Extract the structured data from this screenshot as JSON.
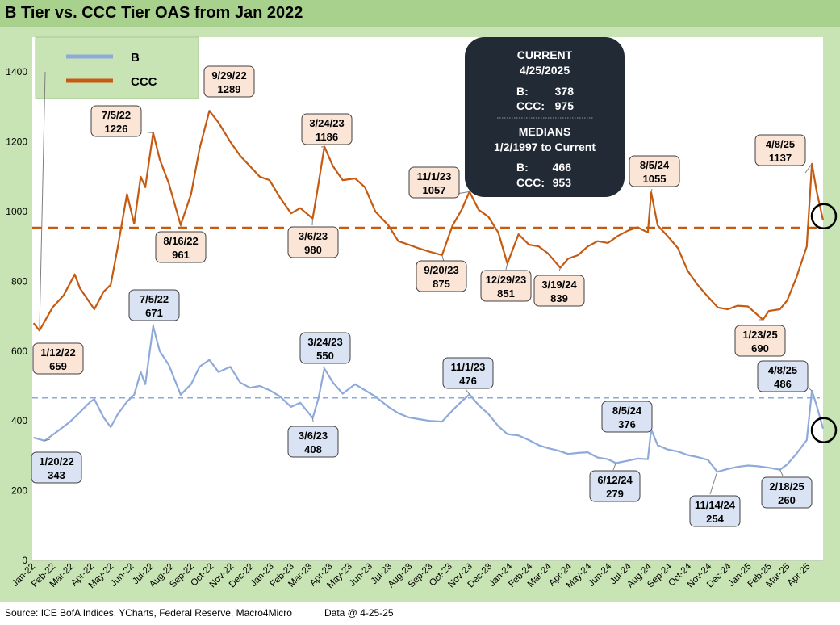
{
  "title": "B Tier vs. CCC Tier OAS from Jan 2022",
  "footer": {
    "source": "Source: ICE BofA Indices, YCharts, Federal Reserve, Macro4Micro",
    "data_date": "Data @ 4-25-25"
  },
  "info_box": {
    "current_heading": "CURRENT",
    "current_date": "4/25/2025",
    "current_b_label": "B:",
    "current_b_value": "378",
    "current_ccc_label": "CCC:",
    "current_ccc_value": "975",
    "medians_heading": "MEDIANS",
    "medians_range": "1/2/1997 to Current",
    "median_b_label": "B:",
    "median_b_value": "466",
    "median_ccc_label": "CCC:",
    "median_ccc_value": "953"
  },
  "colors": {
    "b_series": "#8eaadb",
    "ccc_series": "#c55a11",
    "b_callout_fill": "#dae3f3",
    "ccc_callout_fill": "#fbe5d6",
    "plot_bg": "#ffffff",
    "frame_bg": "#c9e4b4",
    "info_box_bg": "#222a35"
  },
  "chart_data": {
    "type": "line",
    "title": "B Tier vs. CCC Tier OAS from Jan 2022",
    "ylim": [
      0,
      1500
    ],
    "yticks": [
      0,
      200,
      400,
      600,
      800,
      1000,
      1200,
      1400
    ],
    "xlim": [
      "2022-01-01",
      "2025-04-25"
    ],
    "x_tick_labels": [
      "Jan-22",
      "Feb-22",
      "Mar-22",
      "Apr-22",
      "May-22",
      "Jun-22",
      "Jul-22",
      "Aug-22",
      "Sep-22",
      "Oct-22",
      "Nov-22",
      "Dec-22",
      "Jan-23",
      "Feb-23",
      "Mar-23",
      "Apr-23",
      "May-23",
      "Jun-23",
      "Jul-23",
      "Aug-23",
      "Sep-23",
      "Oct-23",
      "Nov-23",
      "Dec-23",
      "Jan-24",
      "Feb-24",
      "Mar-24",
      "Apr-24",
      "May-24",
      "Jun-24",
      "Jul-24",
      "Aug-24",
      "Sep-24",
      "Oct-24",
      "Nov-24",
      "Dec-24",
      "Jan-25",
      "Feb-25",
      "Mar-25",
      "Apr-25"
    ],
    "legend": {
      "placement": "top-left",
      "entries": [
        "B",
        "CCC"
      ]
    },
    "reference_lines": [
      {
        "series": "CCC",
        "value": 953,
        "style": "dashed"
      },
      {
        "series": "B",
        "value": 466,
        "style": "dashed"
      }
    ],
    "series": [
      {
        "name": "B",
        "points": [
          [
            "2022-01-03",
            352
          ],
          [
            "2022-01-20",
            343
          ],
          [
            "2022-02-10",
            372
          ],
          [
            "2022-02-28",
            398
          ],
          [
            "2022-03-15",
            425
          ],
          [
            "2022-03-31",
            455
          ],
          [
            "2022-04-06",
            462
          ],
          [
            "2022-04-20",
            410
          ],
          [
            "2022-05-01",
            382
          ],
          [
            "2022-05-12",
            420
          ],
          [
            "2022-05-26",
            455
          ],
          [
            "2022-06-06",
            475
          ],
          [
            "2022-06-16",
            540
          ],
          [
            "2022-06-23",
            505
          ],
          [
            "2022-07-05",
            671
          ],
          [
            "2022-07-15",
            600
          ],
          [
            "2022-07-29",
            560
          ],
          [
            "2022-08-16",
            475
          ],
          [
            "2022-09-01",
            505
          ],
          [
            "2022-09-14",
            555
          ],
          [
            "2022-09-29",
            575
          ],
          [
            "2022-10-13",
            540
          ],
          [
            "2022-10-31",
            555
          ],
          [
            "2022-11-15",
            510
          ],
          [
            "2022-11-30",
            495
          ],
          [
            "2022-12-15",
            500
          ],
          [
            "2022-12-30",
            488
          ],
          [
            "2023-01-15",
            470
          ],
          [
            "2023-02-01",
            440
          ],
          [
            "2023-02-15",
            452
          ],
          [
            "2023-03-06",
            408
          ],
          [
            "2023-03-15",
            465
          ],
          [
            "2023-03-24",
            550
          ],
          [
            "2023-04-06",
            510
          ],
          [
            "2023-04-21",
            478
          ],
          [
            "2023-05-10",
            505
          ],
          [
            "2023-05-25",
            488
          ],
          [
            "2023-06-10",
            470
          ],
          [
            "2023-06-30",
            440
          ],
          [
            "2023-07-15",
            422
          ],
          [
            "2023-07-31",
            410
          ],
          [
            "2023-08-15",
            405
          ],
          [
            "2023-09-01",
            400
          ],
          [
            "2023-09-20",
            398
          ],
          [
            "2023-10-06",
            430
          ],
          [
            "2023-10-20",
            456
          ],
          [
            "2023-11-01",
            476
          ],
          [
            "2023-11-15",
            445
          ],
          [
            "2023-11-30",
            420
          ],
          [
            "2023-12-15",
            385
          ],
          [
            "2023-12-29",
            362
          ],
          [
            "2024-01-15",
            358
          ],
          [
            "2024-01-31",
            345
          ],
          [
            "2024-02-15",
            330
          ],
          [
            "2024-02-29",
            322
          ],
          [
            "2024-03-15",
            315
          ],
          [
            "2024-03-31",
            305
          ],
          [
            "2024-04-15",
            308
          ],
          [
            "2024-04-30",
            310
          ],
          [
            "2024-05-15",
            295
          ],
          [
            "2024-05-31",
            290
          ],
          [
            "2024-06-12",
            279
          ],
          [
            "2024-06-28",
            285
          ],
          [
            "2024-07-15",
            292
          ],
          [
            "2024-07-31",
            290
          ],
          [
            "2024-08-05",
            376
          ],
          [
            "2024-08-15",
            330
          ],
          [
            "2024-08-30",
            318
          ],
          [
            "2024-09-15",
            312
          ],
          [
            "2024-09-30",
            302
          ],
          [
            "2024-10-15",
            296
          ],
          [
            "2024-10-31",
            288
          ],
          [
            "2024-11-14",
            254
          ],
          [
            "2024-11-30",
            262
          ],
          [
            "2024-12-15",
            268
          ],
          [
            "2024-12-31",
            272
          ],
          [
            "2025-01-15",
            270
          ],
          [
            "2025-01-31",
            266
          ],
          [
            "2025-02-18",
            260
          ],
          [
            "2025-03-01",
            275
          ],
          [
            "2025-03-15",
            305
          ],
          [
            "2025-03-31",
            345
          ],
          [
            "2025-04-08",
            486
          ],
          [
            "2025-04-15",
            445
          ],
          [
            "2025-04-25",
            378
          ]
        ]
      },
      {
        "name": "CCC",
        "points": [
          [
            "2022-01-03",
            680
          ],
          [
            "2022-01-12",
            659
          ],
          [
            "2022-02-01",
            725
          ],
          [
            "2022-02-18",
            760
          ],
          [
            "2022-03-07",
            820
          ],
          [
            "2022-03-15",
            780
          ],
          [
            "2022-04-06",
            720
          ],
          [
            "2022-04-20",
            770
          ],
          [
            "2022-05-01",
            790
          ],
          [
            "2022-05-12",
            900
          ],
          [
            "2022-05-26",
            1050
          ],
          [
            "2022-06-06",
            965
          ],
          [
            "2022-06-16",
            1100
          ],
          [
            "2022-06-23",
            1070
          ],
          [
            "2022-07-05",
            1226
          ],
          [
            "2022-07-15",
            1150
          ],
          [
            "2022-07-29",
            1080
          ],
          [
            "2022-08-16",
            961
          ],
          [
            "2022-09-01",
            1050
          ],
          [
            "2022-09-14",
            1180
          ],
          [
            "2022-09-29",
            1289
          ],
          [
            "2022-10-13",
            1255
          ],
          [
            "2022-10-31",
            1200
          ],
          [
            "2022-11-15",
            1160
          ],
          [
            "2022-11-30",
            1130
          ],
          [
            "2022-12-15",
            1100
          ],
          [
            "2022-12-30",
            1090
          ],
          [
            "2023-01-15",
            1040
          ],
          [
            "2023-02-01",
            995
          ],
          [
            "2023-02-15",
            1010
          ],
          [
            "2023-03-06",
            980
          ],
          [
            "2023-03-15",
            1080
          ],
          [
            "2023-03-24",
            1186
          ],
          [
            "2023-04-06",
            1130
          ],
          [
            "2023-04-21",
            1090
          ],
          [
            "2023-05-10",
            1095
          ],
          [
            "2023-05-25",
            1070
          ],
          [
            "2023-06-10",
            1000
          ],
          [
            "2023-06-30",
            960
          ],
          [
            "2023-07-15",
            915
          ],
          [
            "2023-07-31",
            905
          ],
          [
            "2023-08-15",
            895
          ],
          [
            "2023-09-01",
            885
          ],
          [
            "2023-09-20",
            875
          ],
          [
            "2023-10-06",
            960
          ],
          [
            "2023-10-20",
            1005
          ],
          [
            "2023-11-01",
            1057
          ],
          [
            "2023-11-15",
            1005
          ],
          [
            "2023-11-30",
            985
          ],
          [
            "2023-12-15",
            940
          ],
          [
            "2023-12-29",
            851
          ],
          [
            "2024-01-15",
            935
          ],
          [
            "2024-01-31",
            905
          ],
          [
            "2024-02-15",
            900
          ],
          [
            "2024-02-29",
            880
          ],
          [
            "2024-03-19",
            839
          ],
          [
            "2024-03-31",
            865
          ],
          [
            "2024-04-15",
            875
          ],
          [
            "2024-04-30",
            900
          ],
          [
            "2024-05-15",
            915
          ],
          [
            "2024-05-31",
            910
          ],
          [
            "2024-06-15",
            930
          ],
          [
            "2024-06-30",
            945
          ],
          [
            "2024-07-15",
            955
          ],
          [
            "2024-07-31",
            940
          ],
          [
            "2024-08-05",
            1055
          ],
          [
            "2024-08-15",
            960
          ],
          [
            "2024-08-30",
            930
          ],
          [
            "2024-09-15",
            895
          ],
          [
            "2024-09-30",
            830
          ],
          [
            "2024-10-15",
            790
          ],
          [
            "2024-10-31",
            755
          ],
          [
            "2024-11-15",
            725
          ],
          [
            "2024-11-30",
            720
          ],
          [
            "2024-12-15",
            730
          ],
          [
            "2024-12-31",
            728
          ],
          [
            "2025-01-23",
            690
          ],
          [
            "2025-02-01",
            715
          ],
          [
            "2025-02-18",
            720
          ],
          [
            "2025-03-01",
            745
          ],
          [
            "2025-03-15",
            810
          ],
          [
            "2025-03-31",
            900
          ],
          [
            "2025-04-08",
            1137
          ],
          [
            "2025-04-15",
            1060
          ],
          [
            "2025-04-25",
            975
          ]
        ]
      }
    ],
    "annotations": [
      {
        "series": "CCC",
        "date": "2022-01-12",
        "date_label": "1/12/22",
        "value": 659
      },
      {
        "series": "CCC",
        "date": "2022-07-05",
        "date_label": "7/5/22",
        "value": 1226
      },
      {
        "series": "CCC",
        "date": "2022-08-16",
        "date_label": "8/16/22",
        "value": 961
      },
      {
        "series": "CCC",
        "date": "2022-09-29",
        "date_label": "9/29/22",
        "value": 1289
      },
      {
        "series": "CCC",
        "date": "2023-03-24",
        "date_label": "3/24/23",
        "value": 1186
      },
      {
        "series": "CCC",
        "date": "2023-03-06",
        "date_label": "3/6/23",
        "value": 980
      },
      {
        "series": "CCC",
        "date": "2023-11-01",
        "date_label": "11/1/23",
        "value": 1057
      },
      {
        "series": "CCC",
        "date": "2023-09-20",
        "date_label": "9/20/23",
        "value": 875
      },
      {
        "series": "CCC",
        "date": "2023-12-29",
        "date_label": "12/29/23",
        "value": 851
      },
      {
        "series": "CCC",
        "date": "2024-03-19",
        "date_label": "3/19/24",
        "value": 839
      },
      {
        "series": "CCC",
        "date": "2024-08-05",
        "date_label": "8/5/24",
        "value": 1055
      },
      {
        "series": "CCC",
        "date": "2025-04-08",
        "date_label": "4/8/25",
        "value": 1137
      },
      {
        "series": "CCC",
        "date": "2025-01-23",
        "date_label": "1/23/25",
        "value": 690
      },
      {
        "series": "B",
        "date": "2022-01-20",
        "date_label": "1/20/22",
        "value": 343
      },
      {
        "series": "B",
        "date": "2022-07-05",
        "date_label": "7/5/22",
        "value": 671
      },
      {
        "series": "B",
        "date": "2023-03-24",
        "date_label": "3/24/23",
        "value": 550
      },
      {
        "series": "B",
        "date": "2023-03-06",
        "date_label": "3/6/23",
        "value": 408
      },
      {
        "series": "B",
        "date": "2023-11-01",
        "date_label": "11/1/23",
        "value": 476
      },
      {
        "series": "B",
        "date": "2024-08-05",
        "date_label": "8/5/24",
        "value": 376
      },
      {
        "series": "B",
        "date": "2024-06-12",
        "date_label": "6/12/24",
        "value": 279
      },
      {
        "series": "B",
        "date": "2024-11-14",
        "date_label": "11/14/24",
        "value": 254
      },
      {
        "series": "B",
        "date": "2025-02-18",
        "date_label": "2/18/25",
        "value": 260
      },
      {
        "series": "B",
        "date": "2025-04-08",
        "date_label": "4/8/25",
        "value": 486
      }
    ]
  }
}
